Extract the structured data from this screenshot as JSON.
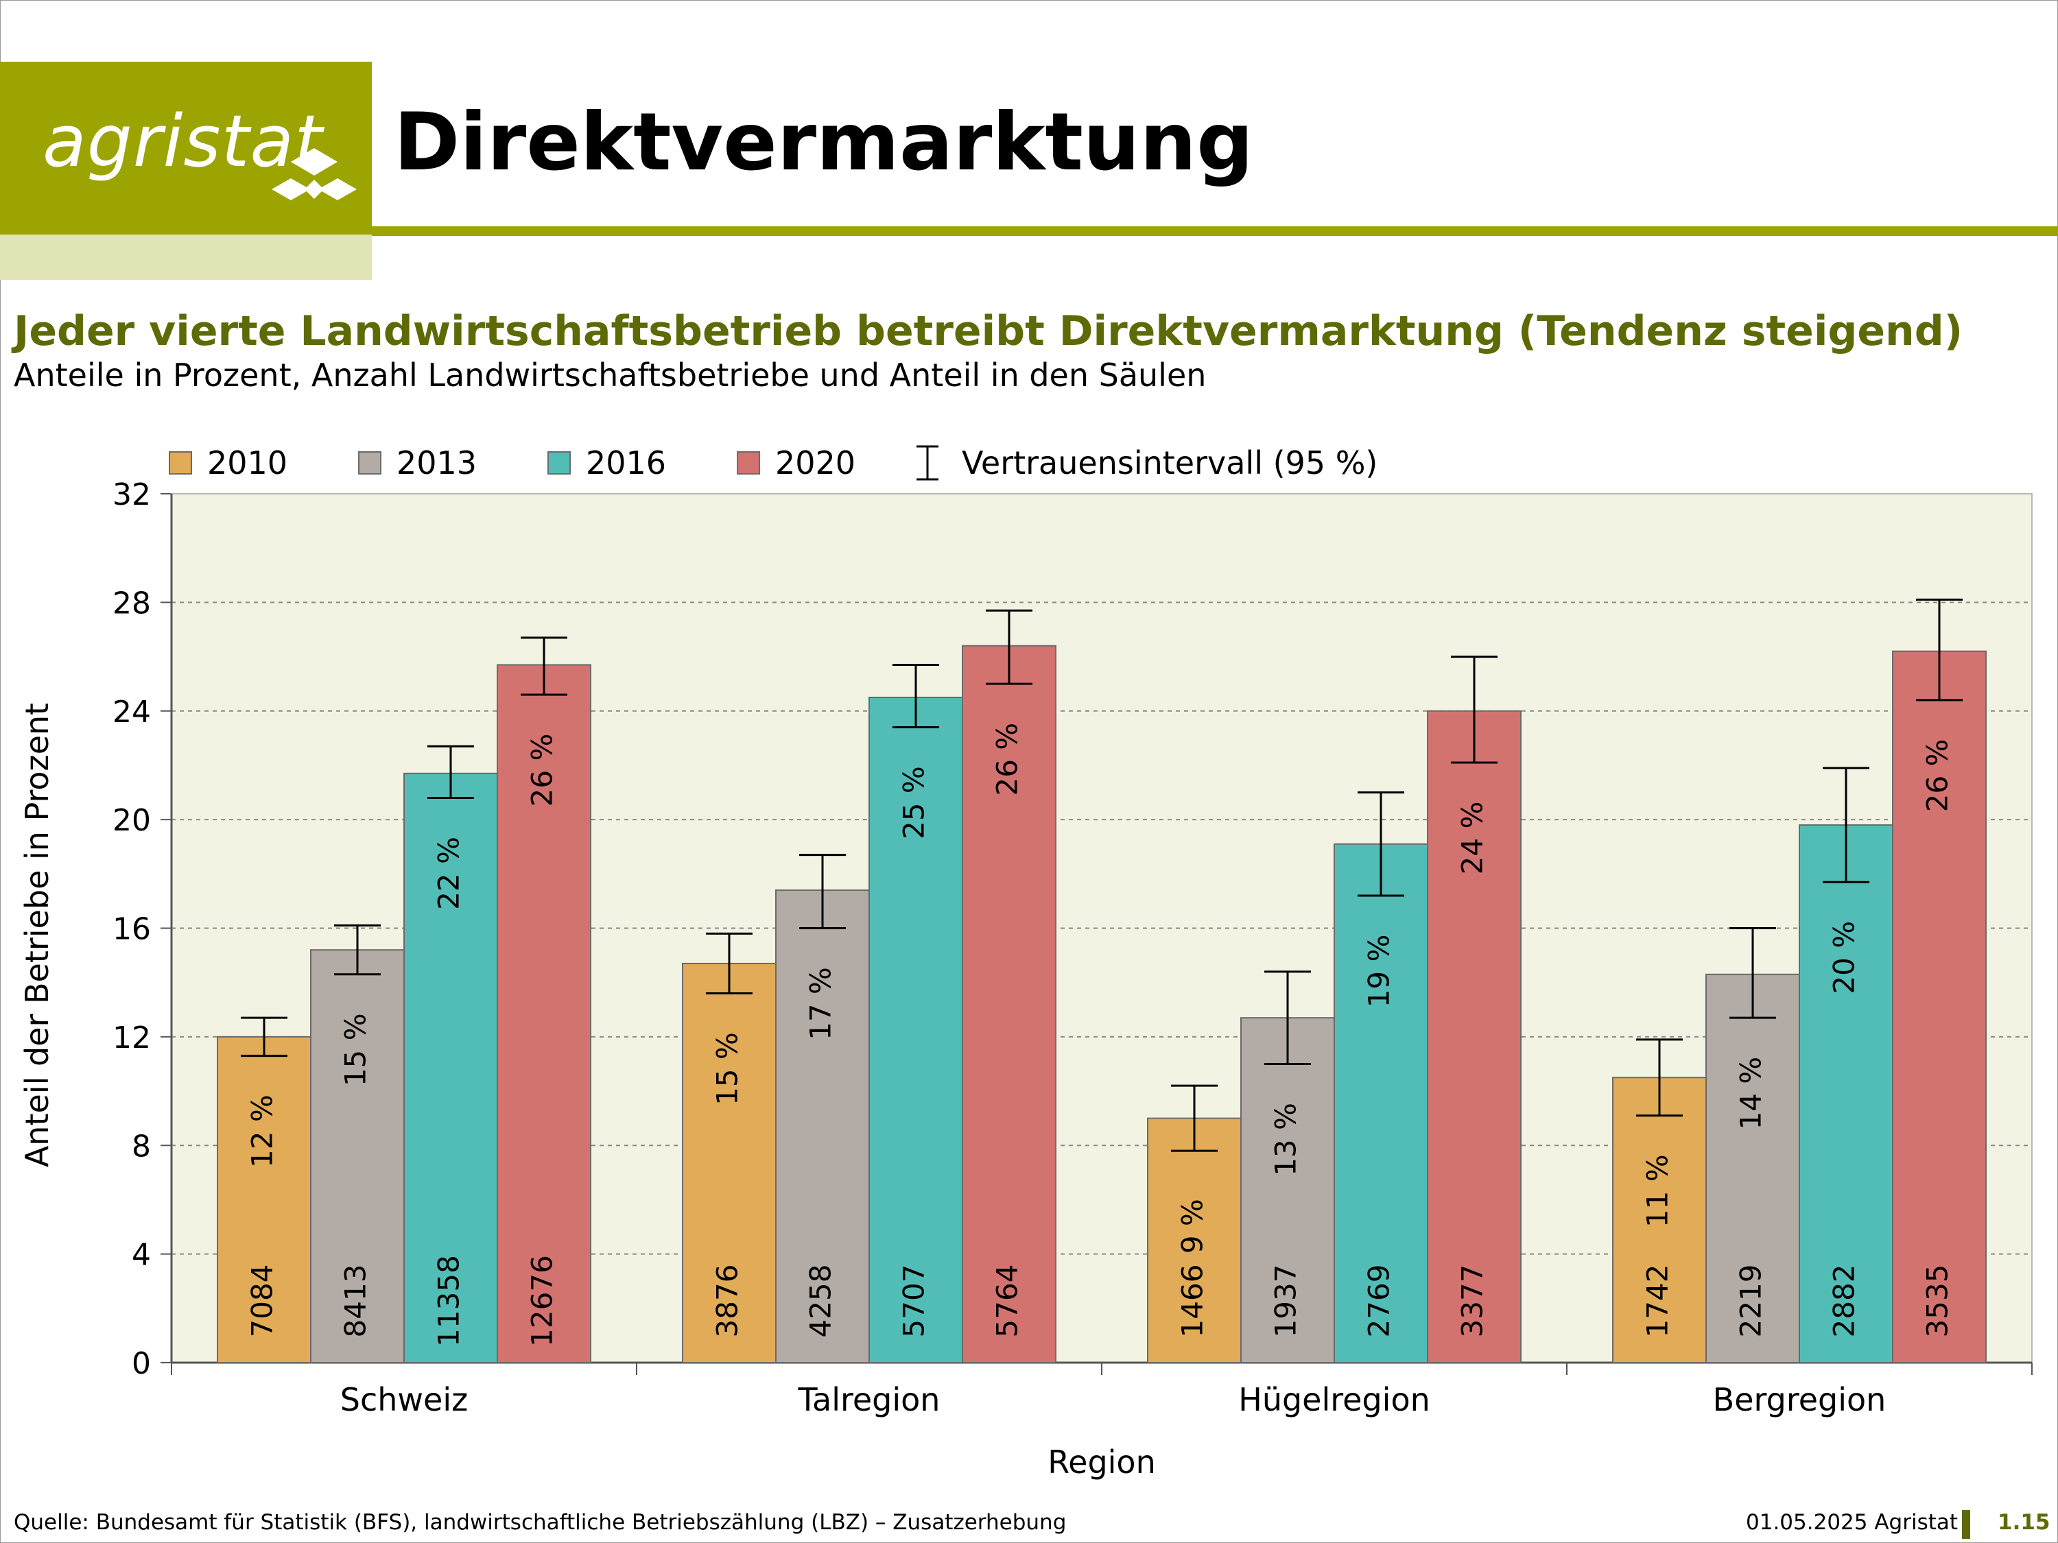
{
  "logo": {
    "text": "agristat"
  },
  "header": {
    "title": "Direktvermarktung"
  },
  "chart_title": "Jeder vierte Landwirtschaftsbetrieb betreibt Direktvermarktung (Tendenz steigend)",
  "chart_subtitle": "Anteile in Prozent, Anzahl Landwirtschaftsbetriebe und Anteil in den Säulen",
  "legend": {
    "items": [
      {
        "label": "2010",
        "color": "#e2ab58"
      },
      {
        "label": "2013",
        "color": "#b3aba5"
      },
      {
        "label": "2016",
        "color": "#52bdb6"
      },
      {
        "label": "2020",
        "color": "#d37370"
      }
    ],
    "ci_label": "Vertrauensintervall (95 %)"
  },
  "chart_data": {
    "type": "bar",
    "categories": [
      "Schweiz",
      "Talregion",
      "Hügelregion",
      "Bergregion"
    ],
    "xlabel": "Region",
    "ylabel": "Anteil der Betriebe in Prozent",
    "ylim": [
      0,
      32
    ],
    "yticks": [
      0,
      4,
      8,
      12,
      16,
      20,
      24,
      28,
      32
    ],
    "grid": true,
    "legend_position": "top",
    "series": [
      {
        "name": "2010",
        "color": "#e2ab58",
        "values": [
          12.0,
          14.7,
          9.0,
          10.5
        ],
        "ci_low": [
          11.3,
          13.6,
          7.8,
          9.1
        ],
        "ci_high": [
          12.7,
          15.8,
          10.2,
          11.9
        ],
        "labels": [
          "12 %",
          "15 %",
          "9 %",
          "11 %"
        ],
        "counts": [
          "7084",
          "3876",
          "1466",
          "1742"
        ]
      },
      {
        "name": "2013",
        "color": "#b3aba5",
        "values": [
          15.2,
          17.4,
          12.7,
          14.3
        ],
        "ci_low": [
          14.3,
          16.0,
          11.0,
          12.7
        ],
        "ci_high": [
          16.1,
          18.7,
          14.4,
          16.0
        ],
        "labels": [
          "15 %",
          "17 %",
          "13 %",
          "14 %"
        ],
        "counts": [
          "8413",
          "4258",
          "1937",
          "2219"
        ]
      },
      {
        "name": "2016",
        "color": "#52bdb6",
        "values": [
          21.7,
          24.5,
          19.1,
          19.8
        ],
        "ci_low": [
          20.8,
          23.4,
          17.2,
          17.7
        ],
        "ci_high": [
          22.7,
          25.7,
          21.0,
          21.9
        ],
        "labels": [
          "22 %",
          "25 %",
          "19 %",
          "20 %"
        ],
        "counts": [
          "11358",
          "5707",
          "2769",
          "2882"
        ]
      },
      {
        "name": "2020",
        "color": "#d37370",
        "values": [
          25.7,
          26.4,
          24.0,
          26.2
        ],
        "ci_low": [
          24.6,
          25.0,
          22.1,
          24.4
        ],
        "ci_high": [
          26.7,
          27.7,
          26.0,
          28.1
        ],
        "labels": [
          "26 %",
          "26 %",
          "24 %",
          "26 %"
        ],
        "counts": [
          "12676",
          "5764",
          "3377",
          "3535"
        ]
      }
    ]
  },
  "footer": {
    "source": "Quelle: Bundesamt für Statistik (BFS), landwirtschaftliche Betriebszählung (LBZ) – Zusatzerhebung",
    "date": "01.05.2025 Agristat",
    "page": "1.15"
  }
}
